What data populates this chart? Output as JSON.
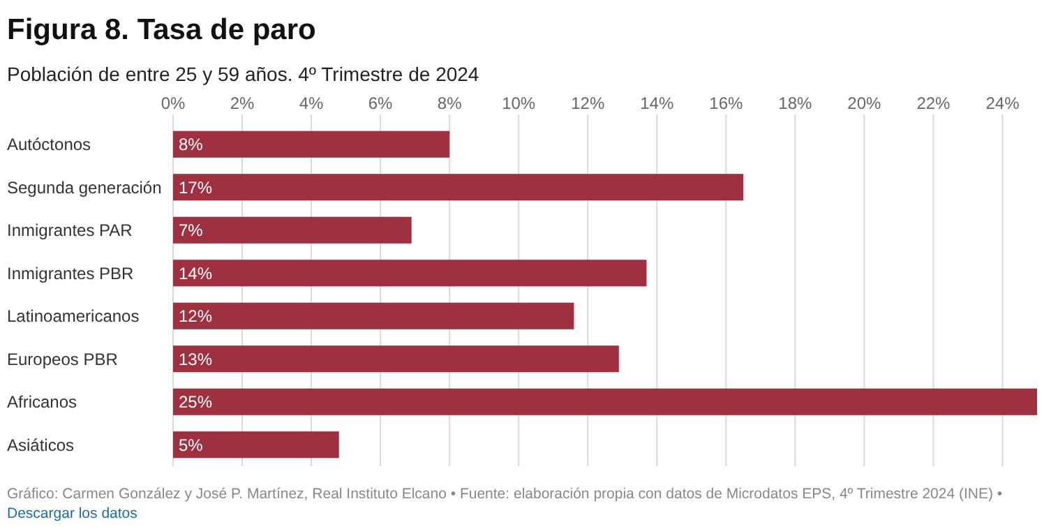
{
  "chart_data": {
    "type": "bar",
    "orientation": "horizontal",
    "title": "Figura 8. Tasa de paro",
    "subtitle": "Población de entre 25 y 59 años. 4º Trimestre de 2024",
    "categories": [
      "Autóctonos",
      "Segunda generación",
      "Inmigrantes PAR",
      "Inmigrantes PBR",
      "Latinoamericanos",
      "Europeos PBR",
      "Africanos",
      "Asiáticos"
    ],
    "values": [
      8.0,
      16.5,
      6.9,
      13.7,
      11.6,
      12.9,
      25.0,
      4.8
    ],
    "value_labels": [
      "8%",
      "17%",
      "7%",
      "14%",
      "12%",
      "13%",
      "25%",
      "5%"
    ],
    "color": "#9e3040",
    "xlim": [
      0,
      25
    ],
    "xticks": [
      {
        "value": 0,
        "label": "0%"
      },
      {
        "value": 2,
        "label": "2%"
      },
      {
        "value": 4,
        "label": "4%"
      },
      {
        "value": 6,
        "label": "6%"
      },
      {
        "value": 8,
        "label": "8%"
      },
      {
        "value": 10,
        "label": "10%"
      },
      {
        "value": 12,
        "label": "12%"
      },
      {
        "value": 14,
        "label": "14%"
      },
      {
        "value": 16,
        "label": "16%"
      },
      {
        "value": 18,
        "label": "18%"
      },
      {
        "value": 20,
        "label": "20%"
      },
      {
        "value": 22,
        "label": "22%"
      },
      {
        "value": 24,
        "label": "24%"
      }
    ],
    "grid": "x",
    "annotations": [
      "Gráfico: Carmen González y José P. Martínez, Real Instituto Elcano • Fuente: elaboración propia con datos de Microdatos EPS, 4º Trimestre 2024 (INE) •",
      "Descargar los datos"
    ]
  }
}
